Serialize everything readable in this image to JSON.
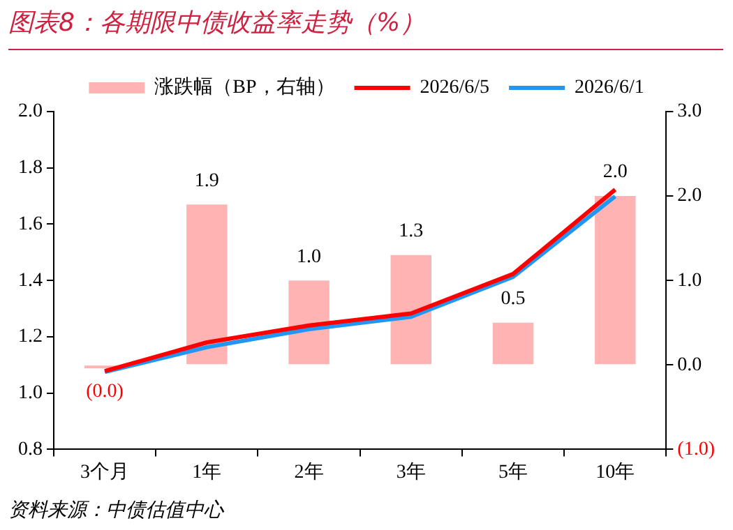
{
  "chart_data": {
    "type": "bar",
    "title": "图表8：各期限中债收益率走势（%）",
    "categories": [
      "3个月",
      "1年",
      "2年",
      "3年",
      "5年",
      "10年"
    ],
    "series": [
      {
        "name": "涨跌幅（BP，右轴）",
        "axis": "y2",
        "color": "#ffb3b3",
        "values": [
          -0.04,
          1.9,
          1.0,
          1.3,
          0.5,
          2.0
        ],
        "value_labels": [
          "(0.0)",
          "1.9",
          "1.0",
          "1.3",
          "0.5",
          "2.0"
        ]
      },
      {
        "name": "2026/6/5",
        "type": "line",
        "color": "#ff0000",
        "values": [
          1.078,
          1.18,
          1.24,
          1.283,
          1.423,
          1.723
        ]
      },
      {
        "name": "2026/6/1",
        "type": "line",
        "color": "#2196f3",
        "values": [
          1.075,
          1.163,
          1.227,
          1.271,
          1.413,
          1.699
        ]
      }
    ],
    "ylim": [
      0.8,
      2.0
    ],
    "yticks": [
      0.8,
      {
        "value": 1,
        "label": "1.0"
      },
      1.2,
      1.4,
      1.6,
      1.8,
      {
        "value": 2,
        "label": "2.0"
      }
    ],
    "y2lim": [
      -1,
      3
    ],
    "y2ticks": [
      {
        "value": -1,
        "label": "(1.0)"
      },
      {
        "value": 0,
        "label": "0.0"
      },
      {
        "value": 1,
        "label": "1.0"
      },
      {
        "value": 2,
        "label": "2.0"
      },
      {
        "value": 3,
        "label": "3.0"
      }
    ],
    "grid": false,
    "legend": "top",
    "marker": "none",
    "annotations": [
      "资料来源：中债估值中心"
    ]
  }
}
